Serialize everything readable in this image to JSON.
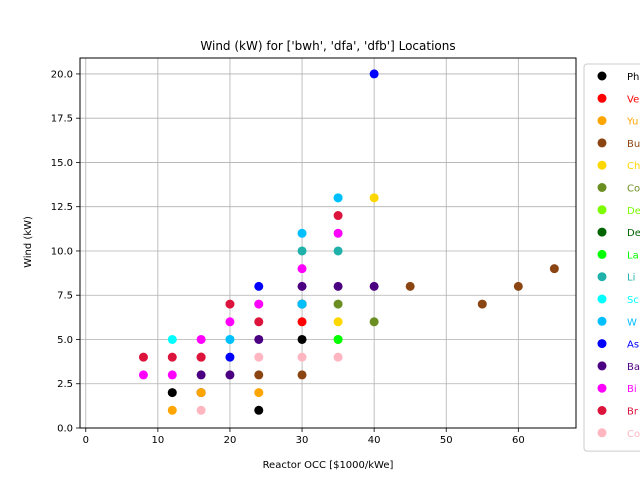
{
  "chart_data": {
    "type": "scatter",
    "title": "Wind (kW) for ['bwh', 'dfa', 'dfb'] Locations",
    "xlabel": "Reactor OCC [$1000/kWe]",
    "ylabel": "Wind (kW)",
    "xlim": [
      -0.8,
      68
    ],
    "ylim": [
      0,
      20.9
    ],
    "xticks": [
      "0",
      "10",
      "20",
      "30",
      "40",
      "50",
      "60"
    ],
    "yticks": [
      "0.0",
      "2.5",
      "5.0",
      "7.5",
      "10.0",
      "12.5",
      "15.0",
      "17.5",
      "20.0"
    ],
    "grid": true,
    "legend_position": "right, partially clipped",
    "series": [
      {
        "name": "Ph",
        "color": "#000000",
        "points": [
          [
            12,
            2
          ],
          [
            16,
            2
          ],
          [
            24,
            1
          ],
          [
            30,
            5
          ],
          [
            30,
            7
          ]
        ]
      },
      {
        "name": "Ve",
        "color": "#ff0000",
        "points": [
          [
            16,
            4
          ],
          [
            30,
            6
          ]
        ]
      },
      {
        "name": "Yu",
        "color": "#ffa500",
        "points": [
          [
            12,
            1
          ],
          [
            16,
            2
          ],
          [
            24,
            2
          ]
        ]
      },
      {
        "name": "Bu",
        "color": "#8b4513",
        "points": [
          [
            24,
            3
          ],
          [
            30,
            3
          ],
          [
            45,
            8
          ],
          [
            55,
            7
          ],
          [
            60,
            8
          ],
          [
            65,
            9
          ]
        ]
      },
      {
        "name": "Ch",
        "color": "#ffd700",
        "points": [
          [
            35,
            6
          ],
          [
            40,
            13
          ]
        ]
      },
      {
        "name": "Co",
        "color": "#6b8e23",
        "points": [
          [
            35,
            7
          ],
          [
            40,
            6
          ]
        ]
      },
      {
        "name": "De",
        "color": "#7cfc00",
        "points": [
          [
            35,
            5
          ]
        ]
      },
      {
        "name": "De",
        "color": "#006400",
        "points": [
          [
            30,
            7
          ]
        ]
      },
      {
        "name": "La",
        "color": "#00ff00",
        "points": [
          [
            35,
            5
          ]
        ]
      },
      {
        "name": "Li",
        "color": "#20b2aa",
        "points": [
          [
            30,
            10
          ],
          [
            35,
            10
          ]
        ]
      },
      {
        "name": "Sc",
        "color": "#00ffff",
        "points": [
          [
            12,
            5
          ],
          [
            20,
            5
          ],
          [
            35,
            13
          ]
        ]
      },
      {
        "name": "W",
        "color": "#00bfff",
        "points": [
          [
            20,
            5
          ],
          [
            30,
            7
          ],
          [
            30,
            11
          ],
          [
            35,
            13
          ]
        ]
      },
      {
        "name": "As",
        "color": "#0000ff",
        "points": [
          [
            20,
            4
          ],
          [
            24,
            8
          ],
          [
            40,
            20
          ]
        ]
      },
      {
        "name": "Ba",
        "color": "#4b0082",
        "points": [
          [
            16,
            3
          ],
          [
            20,
            3
          ],
          [
            24,
            5
          ],
          [
            30,
            8
          ],
          [
            35,
            8
          ],
          [
            40,
            8
          ]
        ]
      },
      {
        "name": "Bi",
        "color": "#ff00ff",
        "points": [
          [
            8,
            3
          ],
          [
            12,
            3
          ],
          [
            16,
            5
          ],
          [
            20,
            6
          ],
          [
            24,
            7
          ],
          [
            30,
            9
          ],
          [
            35,
            11
          ]
        ]
      },
      {
        "name": "Br",
        "color": "#dc143c",
        "points": [
          [
            8,
            4
          ],
          [
            12,
            4
          ],
          [
            16,
            4
          ],
          [
            20,
            7
          ],
          [
            24,
            6
          ],
          [
            35,
            12
          ]
        ]
      },
      {
        "name": "Co",
        "color": "#ffb6c1",
        "points": [
          [
            16,
            1
          ],
          [
            24,
            4
          ],
          [
            30,
            4
          ],
          [
            35,
            4
          ]
        ]
      }
    ]
  }
}
